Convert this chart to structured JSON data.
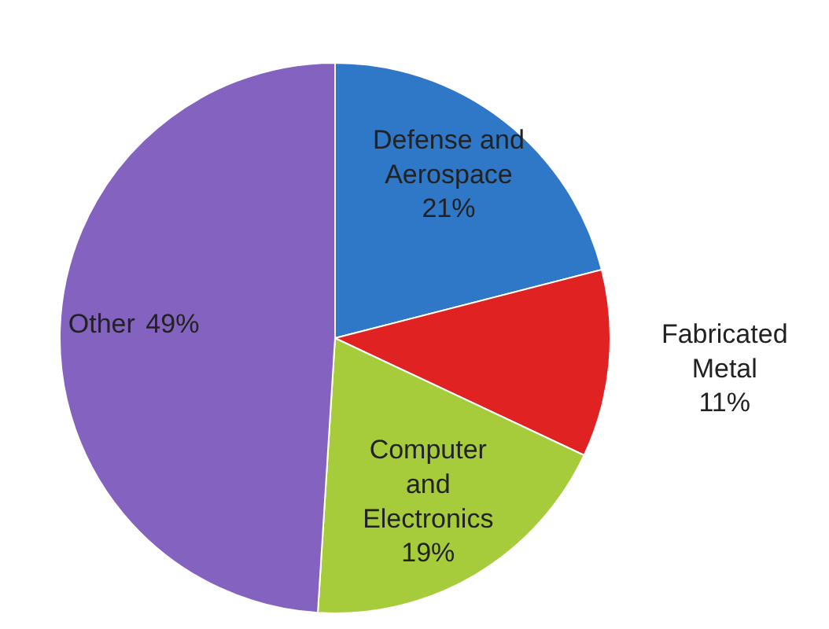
{
  "chart_data": {
    "type": "pie",
    "categories": [
      "Defense and Aerospace",
      "Fabricated Metal",
      "Computer and Electronics",
      "Other"
    ],
    "values": [
      21,
      11,
      19,
      49
    ],
    "colors": [
      "#2f78c8",
      "#e02222",
      "#a6cc3c",
      "#8462c0"
    ],
    "value_labels": [
      "21%",
      "11%",
      "19%",
      "49%"
    ]
  }
}
